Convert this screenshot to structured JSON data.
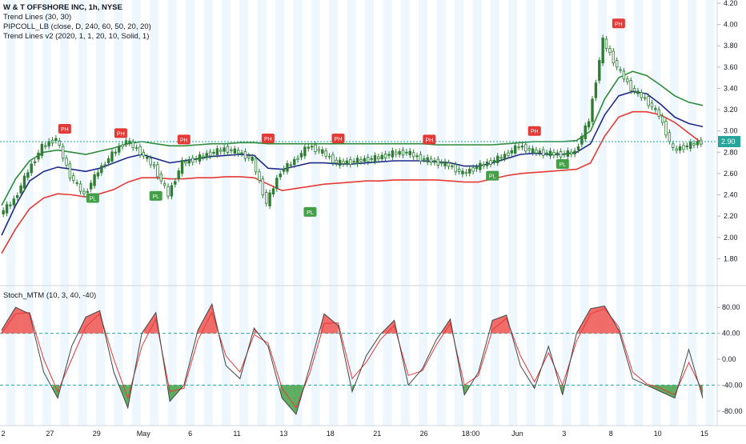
{
  "header": {
    "symbol_line": "W & T OFFSHORE INC, 1h, NYSE",
    "indicators": [
      "Trend Lines (30, 30)",
      "PIPCOLL_LB (close, D, 240, 60, 50, 20, 20)",
      "Trend Lines v2 (2020, 1, 1, 20, 10, Solid, 1)"
    ],
    "oscillator_label": "Stoch_MTM (10, 3, 40, -40)"
  },
  "colors": {
    "upper_band": "#2e8b3a",
    "mid_band": "#1f2a8a",
    "lower_band": "#e53935",
    "candle": "#2e7d32",
    "stoch_fast": "#444444",
    "stoch_slow": "#e53935",
    "overbought_fill": "#ef5350",
    "oversold_fill": "#43a047",
    "last_price_bg": "#26a69a",
    "session_shade": "#e3f2fd"
  },
  "chart_data": [
    {
      "type": "line",
      "title": "W & T OFFSHORE INC, 1h, NYSE",
      "last_price": "2.90",
      "ylim": [
        1.6,
        4.2
      ],
      "y_ticks": [
        "4.20",
        "4.00",
        "3.80",
        "3.60",
        "3.40",
        "3.20",
        "3.00",
        "2.80",
        "2.60",
        "2.40",
        "2.20",
        "2.00",
        "1.80"
      ],
      "x": [
        0,
        2,
        4,
        6,
        8,
        10,
        12,
        14,
        16,
        18,
        20,
        22,
        24,
        26,
        28,
        30,
        32,
        34,
        36,
        38,
        40,
        42,
        44,
        46,
        48,
        50,
        52,
        54,
        56,
        58,
        60,
        62,
        64,
        66,
        68,
        70,
        72,
        74,
        76,
        78,
        80,
        82,
        84,
        86,
        88,
        90,
        92,
        94,
        96,
        98,
        100
      ],
      "series": [
        {
          "name": "price",
          "values": [
            2.22,
            2.35,
            2.62,
            2.85,
            2.93,
            2.58,
            2.4,
            2.62,
            2.78,
            2.91,
            2.8,
            2.66,
            2.4,
            2.7,
            2.74,
            2.79,
            2.83,
            2.8,
            2.73,
            2.32,
            2.62,
            2.72,
            2.86,
            2.8,
            2.7,
            2.71,
            2.73,
            2.75,
            2.79,
            2.8,
            2.74,
            2.71,
            2.68,
            2.6,
            2.66,
            2.71,
            2.77,
            2.86,
            2.81,
            2.79,
            2.78,
            2.8,
            3.1,
            3.85,
            3.6,
            3.4,
            3.3,
            3.15,
            2.82,
            2.86,
            2.9
          ]
        },
        {
          "name": "upper",
          "values": [
            2.3,
            2.55,
            2.72,
            2.8,
            2.82,
            2.8,
            2.78,
            2.81,
            2.84,
            2.88,
            2.9,
            2.88,
            2.86,
            2.86,
            2.87,
            2.88,
            2.88,
            2.89,
            2.89,
            2.88,
            2.88,
            2.88,
            2.88,
            2.88,
            2.88,
            2.88,
            2.88,
            2.88,
            2.88,
            2.88,
            2.88,
            2.87,
            2.87,
            2.87,
            2.87,
            2.87,
            2.88,
            2.89,
            2.9,
            2.9,
            2.9,
            2.91,
            3.0,
            3.3,
            3.5,
            3.56,
            3.52,
            3.43,
            3.33,
            3.27,
            3.24
          ]
        },
        {
          "name": "middle",
          "values": [
            2.02,
            2.3,
            2.53,
            2.62,
            2.66,
            2.64,
            2.62,
            2.65,
            2.7,
            2.75,
            2.78,
            2.74,
            2.7,
            2.72,
            2.74,
            2.76,
            2.77,
            2.78,
            2.77,
            2.65,
            2.64,
            2.67,
            2.7,
            2.7,
            2.69,
            2.69,
            2.7,
            2.71,
            2.72,
            2.72,
            2.72,
            2.71,
            2.7,
            2.67,
            2.67,
            2.7,
            2.74,
            2.78,
            2.79,
            2.78,
            2.78,
            2.8,
            2.88,
            3.15,
            3.33,
            3.37,
            3.35,
            3.25,
            3.13,
            3.07,
            3.04
          ]
        },
        {
          "name": "lower",
          "values": [
            1.85,
            2.08,
            2.27,
            2.37,
            2.41,
            2.4,
            2.38,
            2.41,
            2.45,
            2.52,
            2.56,
            2.56,
            2.55,
            2.55,
            2.56,
            2.56,
            2.57,
            2.57,
            2.56,
            2.5,
            2.44,
            2.46,
            2.48,
            2.5,
            2.51,
            2.52,
            2.53,
            2.53,
            2.54,
            2.54,
            2.54,
            2.54,
            2.53,
            2.52,
            2.52,
            2.55,
            2.58,
            2.6,
            2.61,
            2.62,
            2.63,
            2.64,
            2.7,
            2.95,
            3.13,
            3.18,
            3.18,
            3.15,
            3.08,
            2.98,
            2.88
          ]
        }
      ],
      "markers": [
        {
          "x": 9,
          "y": 3.02,
          "label": "PH",
          "kind": "high"
        },
        {
          "x": 13,
          "y": 2.37,
          "label": "PL",
          "kind": "low"
        },
        {
          "x": 17,
          "y": 2.98,
          "label": "PH",
          "kind": "high"
        },
        {
          "x": 22,
          "y": 2.39,
          "label": "PL",
          "kind": "low"
        },
        {
          "x": 26,
          "y": 2.92,
          "label": "PH",
          "kind": "high"
        },
        {
          "x": 38,
          "y": 2.93,
          "label": "PH",
          "kind": "high"
        },
        {
          "x": 44,
          "y": 2.24,
          "label": "PL",
          "kind": "low"
        },
        {
          "x": 48,
          "y": 2.93,
          "label": "PH",
          "kind": "high"
        },
        {
          "x": 61,
          "y": 2.92,
          "label": "PH",
          "kind": "high"
        },
        {
          "x": 70,
          "y": 2.58,
          "label": "PL",
          "kind": "low"
        },
        {
          "x": 76,
          "y": 3.0,
          "label": "PH",
          "kind": "high"
        },
        {
          "x": 80,
          "y": 2.69,
          "label": "PL",
          "kind": "low"
        },
        {
          "x": 88,
          "y": 4.01,
          "label": "PH",
          "kind": "high"
        }
      ]
    },
    {
      "type": "area",
      "title": "Stoch_MTM (10, 3, 40, -40)",
      "ylim": [
        -100,
        100
      ],
      "y_ticks": [
        "80.00",
        "40.00",
        "0.00",
        "-40.00",
        "-80.00"
      ],
      "levels": [
        40,
        -40
      ],
      "x": [
        0,
        2,
        4,
        6,
        8,
        10,
        12,
        14,
        16,
        18,
        20,
        22,
        24,
        26,
        28,
        30,
        32,
        34,
        36,
        38,
        40,
        42,
        44,
        46,
        48,
        50,
        52,
        54,
        56,
        58,
        60,
        62,
        64,
        66,
        68,
        70,
        72,
        74,
        76,
        78,
        80,
        82,
        84,
        86,
        88,
        90,
        92,
        94,
        96,
        98,
        100
      ],
      "series": [
        {
          "name": "fast",
          "values": [
            45,
            80,
            70,
            -20,
            -60,
            20,
            65,
            75,
            -20,
            -75,
            40,
            72,
            -65,
            -40,
            45,
            85,
            -10,
            -30,
            48,
            20,
            -60,
            -85,
            -10,
            70,
            52,
            -50,
            5,
            38,
            60,
            -40,
            -15,
            30,
            62,
            -55,
            -20,
            60,
            68,
            -10,
            -45,
            20,
            -55,
            40,
            78,
            82,
            45,
            -30,
            -40,
            -50,
            -60,
            15,
            -60
          ]
        },
        {
          "name": "slow",
          "values": [
            40,
            70,
            72,
            0,
            -50,
            0,
            50,
            70,
            0,
            -60,
            20,
            62,
            -50,
            -45,
            30,
            72,
            5,
            -20,
            38,
            25,
            -45,
            -75,
            -20,
            55,
            56,
            -30,
            -5,
            30,
            52,
            -25,
            -18,
            22,
            55,
            -40,
            -25,
            45,
            63,
            5,
            -35,
            10,
            -40,
            28,
            70,
            78,
            50,
            -20,
            -38,
            -45,
            -55,
            -5,
            -50
          ]
        }
      ],
      "x_tick_labels": [
        "2",
        "27",
        "29",
        "May",
        "6",
        "11",
        "13",
        "18",
        "21",
        "26",
        "18:00",
        "Jun",
        "3",
        "8",
        "10",
        "15"
      ]
    }
  ]
}
